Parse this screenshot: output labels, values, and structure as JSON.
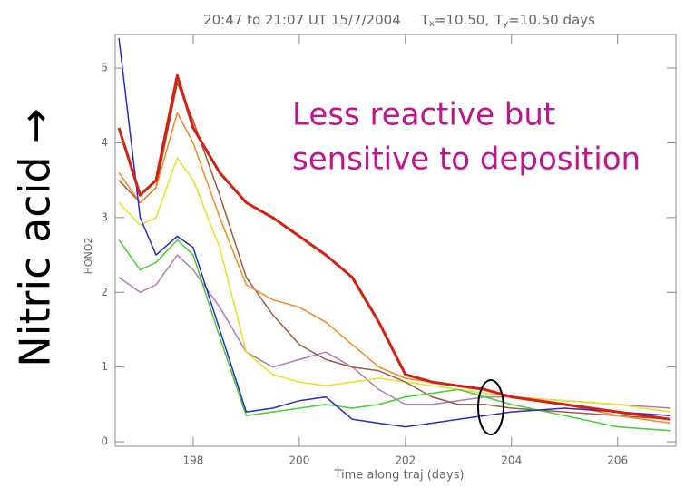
{
  "chart_data": {
    "type": "line",
    "title": {
      "time": "20:47 to 21:07 UT 15/7/2004",
      "tx": "T",
      "tx_sub": "x",
      "tx_value": "=10.50,",
      "ty": "T",
      "ty_sub": "y",
      "ty_value": "=10.50 days"
    },
    "ylabel": "HONO2",
    "xlabel": "Time along traj  (days)",
    "side_label": "Nitric acid →",
    "annotation": [
      "Less reactive but",
      "sensitive to deposition"
    ],
    "xlim": [
      196.53,
      207.1
    ],
    "ylim": [
      -0.06,
      5.45
    ],
    "xticks": [
      198,
      200,
      202,
      204,
      206
    ],
    "yticks": [
      0,
      1,
      2,
      3,
      4,
      5
    ],
    "x": [
      196.6,
      197,
      197.3,
      197.7,
      198,
      198.5,
      199,
      199.5,
      200,
      200.5,
      201,
      201.5,
      202,
      202.5,
      203,
      203.5,
      204,
      205,
      206,
      207
    ],
    "series": [
      {
        "color": "#b07ab8",
        "values": [
          2.2,
          2.0,
          2.1,
          2.5,
          2.3,
          1.8,
          1.2,
          1.0,
          1.1,
          1.2,
          1.0,
          0.7,
          0.5,
          0.5,
          0.55,
          0.6,
          0.6,
          0.55,
          0.5,
          0.45
        ]
      },
      {
        "color": "#e8e020",
        "values": [
          3.2,
          2.9,
          3.0,
          3.8,
          3.5,
          2.6,
          1.2,
          0.9,
          0.8,
          0.75,
          0.8,
          0.85,
          0.8,
          0.75,
          0.7,
          0.65,
          0.6,
          0.55,
          0.5,
          0.4
        ]
      },
      {
        "color": "#a05a3c",
        "values": [
          3.5,
          3.2,
          3.4,
          4.8,
          4.3,
          3.3,
          2.2,
          1.7,
          1.3,
          1.1,
          1.0,
          0.95,
          0.8,
          0.6,
          0.5,
          0.5,
          0.45,
          0.4,
          0.35,
          0.3
        ]
      },
      {
        "color": "#f08a20",
        "values": [
          3.6,
          3.2,
          3.4,
          4.4,
          4.0,
          3.0,
          2.1,
          1.9,
          1.8,
          1.6,
          1.3,
          1.0,
          0.85,
          0.8,
          0.75,
          0.7,
          0.6,
          0.5,
          0.35,
          0.25
        ]
      },
      {
        "color": "#40d030",
        "values": [
          2.7,
          2.3,
          2.4,
          2.7,
          2.5,
          1.4,
          0.35,
          0.4,
          0.45,
          0.5,
          0.45,
          0.5,
          0.6,
          0.65,
          0.7,
          0.6,
          0.5,
          0.35,
          0.2,
          0.15
        ]
      },
      {
        "color": "#2a2ac8",
        "values": [
          5.4,
          3.0,
          2.5,
          2.75,
          2.6,
          1.5,
          0.4,
          0.45,
          0.55,
          0.6,
          0.3,
          0.25,
          0.2,
          0.25,
          0.3,
          0.35,
          0.4,
          0.45,
          0.4,
          0.35
        ]
      },
      {
        "color": "#d42010",
        "values": [
          4.2,
          3.3,
          3.5,
          4.9,
          4.2,
          3.6,
          3.2,
          3.0,
          2.75,
          2.5,
          2.2,
          1.6,
          0.9,
          0.8,
          0.75,
          0.7,
          0.6,
          0.5,
          0.4,
          0.3
        ]
      }
    ]
  }
}
